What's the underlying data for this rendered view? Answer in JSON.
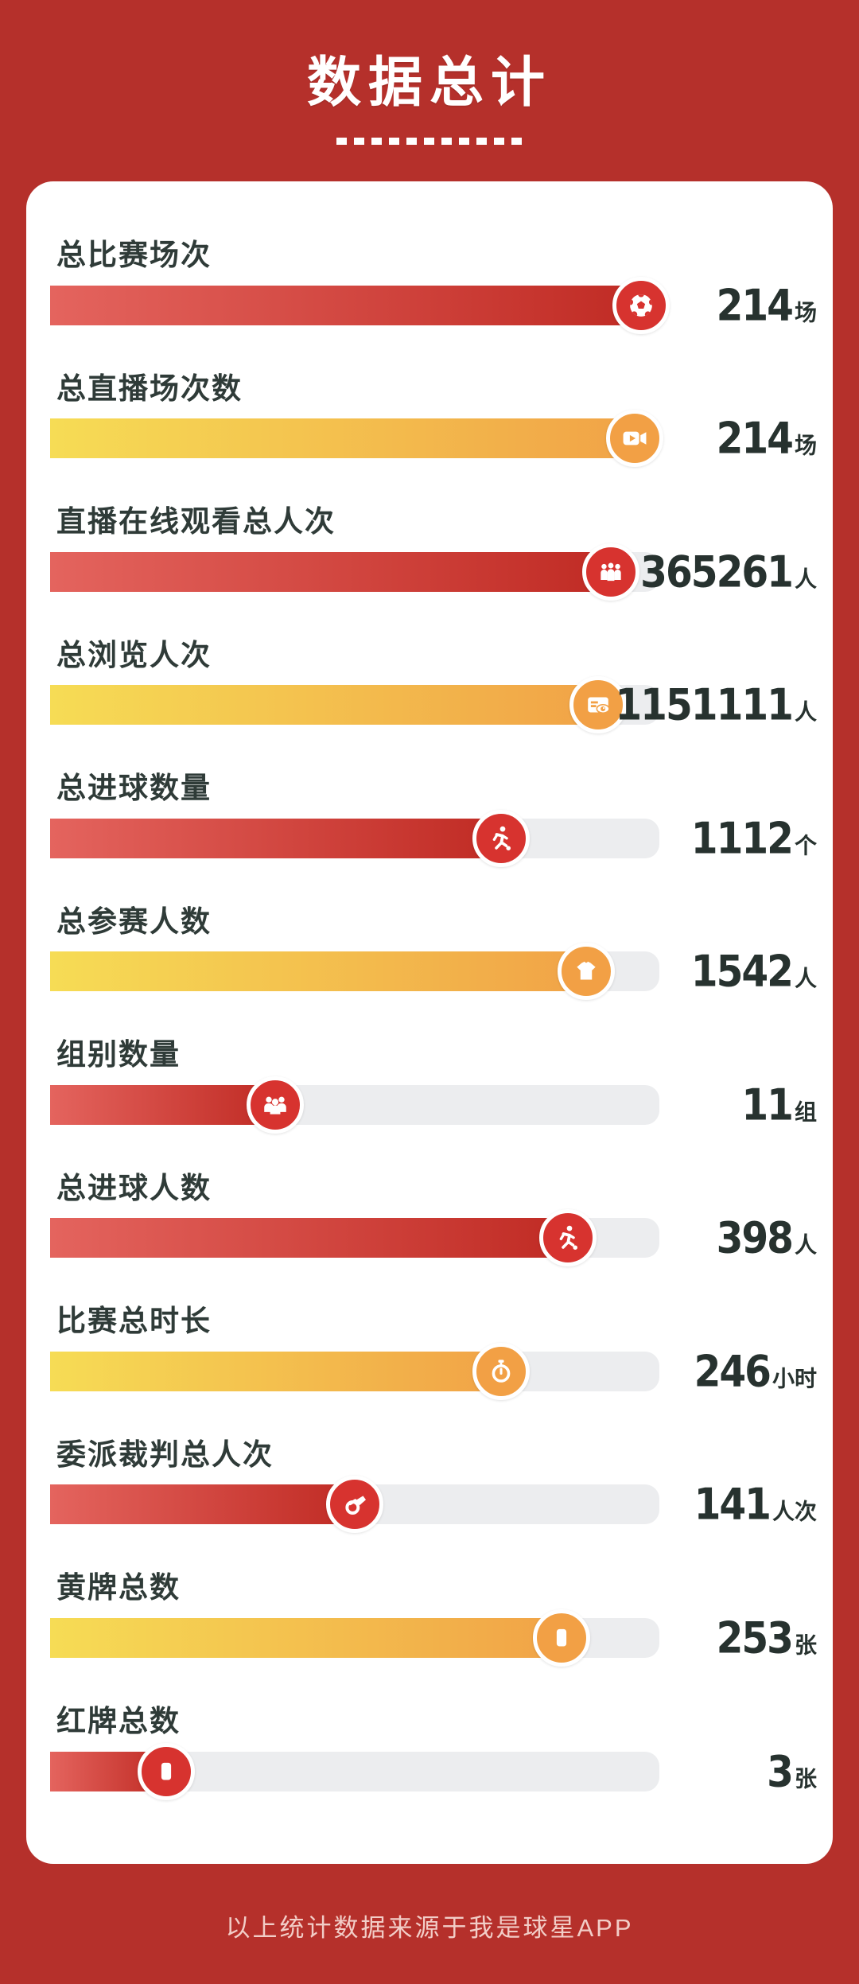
{
  "header": {
    "title": "数据总计"
  },
  "footer": {
    "note": "以上统计数据来源于我是球星APP"
  },
  "colors": {
    "background": "#B5302B",
    "card": "#FFFFFF",
    "label_text": "#2F3B38",
    "value_text": "#27322F",
    "track": "#ECEDEF",
    "red_bar_start": "#E4645E",
    "red_bar_end": "#C02B24",
    "yellow_bar_start": "#F6DC55",
    "yellow_bar_end": "#F1A347",
    "red_icon": "#D7332F",
    "yellow_icon": "#F2A045",
    "footer_text": "#F2CDC7"
  },
  "rows": [
    {
      "label": "总比赛场次",
      "value": "214",
      "unit": "场",
      "percent": 97,
      "palette": "red",
      "icon": "soccer-ball-icon"
    },
    {
      "label": "总直播场次数",
      "value": "214",
      "unit": "场",
      "percent": 96,
      "palette": "yellow",
      "icon": "video-camera-icon"
    },
    {
      "label": "直播在线观看总人次",
      "value": "365261",
      "unit": "人",
      "percent": 92,
      "palette": "red",
      "icon": "audience-group-icon"
    },
    {
      "label": "总浏览人次",
      "value": "1151111",
      "unit": "人",
      "percent": 90,
      "palette": "yellow",
      "icon": "page-views-icon"
    },
    {
      "label": "总进球数量",
      "value": "1112",
      "unit": "个",
      "percent": 74,
      "palette": "red",
      "icon": "goal-kick-icon"
    },
    {
      "label": "总参赛人数",
      "value": "1542",
      "unit": "人",
      "percent": 88,
      "palette": "yellow",
      "icon": "jersey-icon"
    },
    {
      "label": "组别数量",
      "value": "11",
      "unit": "组",
      "percent": 37,
      "palette": "red",
      "icon": "team-group-icon"
    },
    {
      "label": "总进球人数",
      "value": "398",
      "unit": "人",
      "percent": 85,
      "palette": "red",
      "icon": "goal-kick-icon"
    },
    {
      "label": "比赛总时长",
      "value": "246",
      "unit": "小时",
      "percent": 74,
      "palette": "yellow",
      "icon": "stopwatch-icon"
    },
    {
      "label": "委派裁判总人次",
      "value": "141",
      "unit": "人次",
      "percent": 50,
      "palette": "red",
      "icon": "whistle-icon"
    },
    {
      "label": "黄牌总数",
      "value": "253",
      "unit": "张",
      "percent": 84,
      "palette": "yellow",
      "icon": "yellow-card-icon"
    },
    {
      "label": "红牌总数",
      "value": "3",
      "unit": "张",
      "percent": 19,
      "palette": "red",
      "icon": "red-card-icon"
    }
  ],
  "chart_data": {
    "type": "bar",
    "orientation": "horizontal",
    "title": "数据总计",
    "source_note": "以上统计数据来源于我是球星APP",
    "categories": [
      "总比赛场次",
      "总直播场次数",
      "直播在线观看总人次",
      "总浏览人次",
      "总进球数量",
      "总参赛人数",
      "组别数量",
      "总进球人数",
      "比赛总时长",
      "委派裁判总人次",
      "黄牌总数",
      "红牌总数"
    ],
    "values": [
      214,
      214,
      365261,
      1151111,
      1112,
      1542,
      11,
      398,
      246,
      141,
      253,
      3
    ],
    "units": [
      "场",
      "场",
      "人",
      "人",
      "个",
      "人",
      "组",
      "人",
      "小时",
      "人次",
      "张",
      "张"
    ],
    "bar_fill_percents": [
      97,
      96,
      92,
      90,
      74,
      88,
      37,
      85,
      74,
      50,
      84,
      19
    ],
    "bar_colors": [
      "red",
      "yellow",
      "red",
      "yellow",
      "red",
      "yellow",
      "red",
      "red",
      "yellow",
      "red",
      "yellow",
      "red"
    ],
    "icons": [
      "soccer-ball-icon",
      "video-camera-icon",
      "audience-group-icon",
      "page-views-icon",
      "goal-kick-icon",
      "jersey-icon",
      "team-group-icon",
      "goal-kick-icon",
      "stopwatch-icon",
      "whistle-icon",
      "yellow-card-icon",
      "red-card-icon"
    ],
    "grid": false,
    "legend": false
  }
}
